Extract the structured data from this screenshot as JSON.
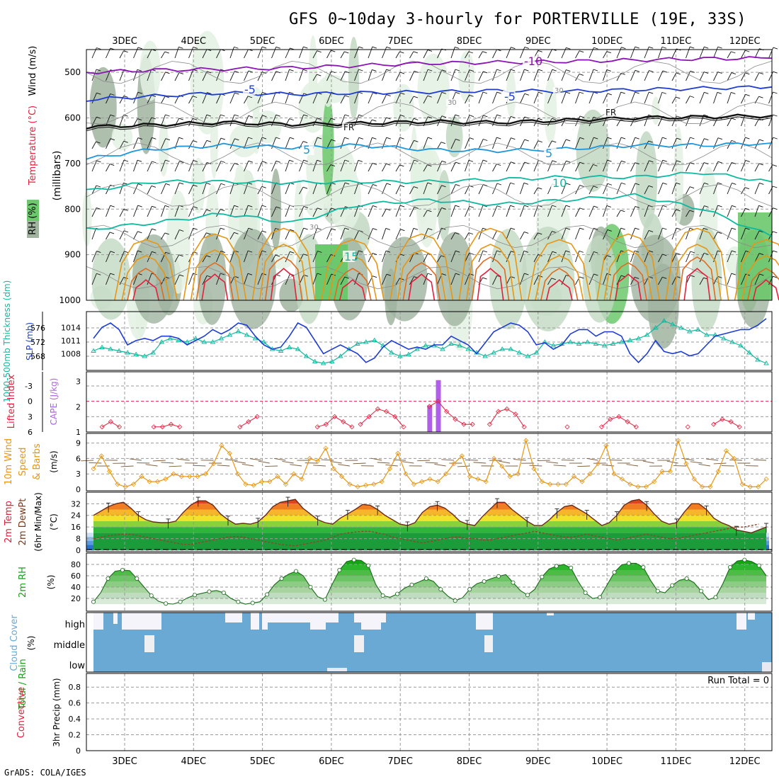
{
  "header": {
    "title": "GFS 0~10day 3-hourly for PORTERVILLE (19E, 33S)",
    "credit": "GrADS: COLA/IGES"
  },
  "colors": {
    "purple": "#8a14b4",
    "blue": "#1e3cd2",
    "lightblue": "#1e96dc",
    "teal": "#10b8a0",
    "orange": "#e69614",
    "red": "#e61e3c",
    "rh_light": "#e3f1e3",
    "rh_mid": "#c2d8c2",
    "rh_dark": "#a0b4a0",
    "rh_green": "#6cc86c",
    "cloud_blue": "#6aa9d4",
    "grid": "#9a9a9a"
  },
  "chart_data": [
    {
      "type": "heatmap",
      "id": "upper",
      "ylabel": "(millibars)",
      "side_labels": [
        "RH (%)",
        "Temperature (°C)",
        "Wind (m/s)"
      ],
      "x_ticks": [
        "3DEC",
        "4DEC",
        "5DEC",
        "6DEC",
        "7DEC",
        "8DEC",
        "9DEC",
        "10DEC",
        "11DEC",
        "12DEC"
      ],
      "ylim": [
        1000,
        450
      ],
      "y_ticks": [
        500,
        600,
        700,
        800,
        900,
        1000
      ],
      "contours": [
        {
          "label": "-10",
          "level": -10,
          "color": "purple",
          "pressure": [
            500,
            495,
            493,
            490,
            485,
            480,
            478,
            476,
            473,
            470,
            469
          ]
        },
        {
          "label": "-5",
          "level": -5,
          "color": "blue",
          "pressure": [
            560,
            552,
            545,
            548,
            545,
            543,
            540,
            542,
            538,
            535,
            532
          ]
        },
        {
          "label": "FR",
          "level": 0,
          "color": "black",
          "pressure": [
            620,
            615,
            610,
            614,
            612,
            608,
            610,
            605,
            600,
            598,
            595
          ]
        },
        {
          "label": "5",
          "level": 5,
          "color": "lightblue",
          "pressure": [
            690,
            668,
            660,
            665,
            660,
            670,
            672,
            668,
            660,
            660,
            655
          ]
        },
        {
          "label": "10",
          "level": 10,
          "color": "teal",
          "pressure": [
            760,
            740,
            740,
            742,
            740,
            740,
            735,
            730,
            730,
            720,
            740
          ]
        },
        {
          "label": "15",
          "level": 15,
          "color": "teal",
          "pressure": [
            845,
            830,
            810,
            830,
            790,
            780,
            790,
            780,
            770,
            800,
            860
          ]
        }
      ],
      "inline_labels": [
        "-10",
        "-5",
        "-5",
        "FR",
        "FR",
        "5",
        "5",
        "10",
        "15",
        "30",
        "30",
        "30"
      ]
    },
    {
      "type": "line",
      "id": "slp",
      "ylabels": [
        "1000-500mb Thickness (dm)",
        "SLP (mb)"
      ],
      "left_ticks": [
        "576",
        "572",
        "568"
      ],
      "right_ticks": [
        "1014",
        "1011",
        "1008"
      ],
      "series": [
        {
          "name": "SLP (mb)",
          "color": "blue",
          "values": [
            1011.5,
            1014,
            1015,
            1013.5,
            1010,
            1011,
            1011.5,
            1011,
            1012,
            1012,
            1011.5,
            1010,
            1011,
            1012,
            1013.5,
            1012.5,
            1013.5,
            1015,
            1014.5,
            1012,
            1010,
            1009,
            1009.5,
            1012,
            1015,
            1014,
            1011,
            1008,
            1009,
            1010,
            1009,
            1008,
            1006,
            1007,
            1009.5,
            1011,
            1010,
            1009,
            1009.5,
            1009,
            1010,
            1010,
            1012,
            1011,
            1010,
            1008,
            1010.5,
            1013,
            1014,
            1015,
            1014.5,
            1013,
            1010,
            1010.5,
            1009,
            1010,
            1012.5,
            1013.5,
            1013.5,
            1012,
            1013,
            1013,
            1012,
            1008,
            1006,
            1008,
            1011,
            1008.5,
            1008,
            1008.5,
            1007.5,
            1008,
            1010,
            1012,
            1012.5,
            1013,
            1013.5,
            1013.5,
            1014.5,
            1016
          ]
        },
        {
          "name": "1000-500mb Thickness (dm)",
          "color": "teal",
          "marker": "triangle",
          "values": [
            569.5,
            570.5,
            570,
            569.5,
            569,
            568.5,
            568,
            569,
            572,
            573,
            572.5,
            572,
            573,
            572,
            572,
            573,
            574,
            575,
            574,
            573,
            572,
            570,
            569.5,
            570.5,
            570,
            568,
            566.5,
            566,
            566.5,
            568,
            570,
            571.5,
            572,
            572.5,
            571,
            569,
            568,
            568.5,
            570,
            571,
            571,
            570,
            571.5,
            571,
            570,
            569,
            568,
            569,
            570,
            570,
            569,
            568,
            569,
            572,
            571,
            571.5,
            572,
            571.5,
            572,
            571.5,
            571,
            571.5,
            572,
            572.5,
            573,
            574,
            576,
            578,
            577,
            576,
            575,
            575.5,
            574,
            574,
            573,
            572,
            571,
            569,
            567,
            566
          ]
        }
      ]
    },
    {
      "type": "bar",
      "id": "li_cape",
      "ylabels": [
        "Lifted Index",
        "CAPE (J/kg)"
      ],
      "left_ticks": [
        "-3",
        "0",
        "3",
        "6"
      ],
      "right_ticks": [
        "3",
        "2",
        "1"
      ],
      "reference_line": 0,
      "cape_bars": [
        {
          "index": 39,
          "value": 2
        },
        {
          "index": 40,
          "value": 3
        }
      ],
      "lifted_index_segments": [
        {
          "start": 1,
          "values": [
            5,
            4,
            5
          ]
        },
        {
          "start": 7,
          "values": [
            5,
            5,
            4.5,
            5
          ]
        },
        {
          "start": 17,
          "values": [
            5,
            4,
            3
          ]
        },
        {
          "start": 26,
          "values": [
            5,
            4.5,
            3,
            4,
            5
          ]
        },
        {
          "start": 31,
          "values": [
            4.5,
            3,
            1.5,
            2,
            3,
            5
          ]
        },
        {
          "start": 39,
          "values": [
            1,
            0,
            2,
            3.5,
            4.5,
            4.5
          ]
        },
        {
          "start": 46,
          "values": [
            4.5,
            2,
            1.5,
            2.5,
            5
          ]
        },
        {
          "start": 55,
          "values": [
            5
          ]
        },
        {
          "start": 59,
          "values": [
            5,
            3.5,
            3,
            4,
            5
          ]
        },
        {
          "start": 69,
          "values": [
            5
          ]
        },
        {
          "start": 72,
          "values": [
            4.5,
            3.5,
            4,
            5
          ]
        }
      ]
    },
    {
      "type": "line",
      "id": "wind10m",
      "ylabels": [
        "10m Wind",
        "Speed",
        "& Barbs",
        "(m/s)"
      ],
      "y_ticks": [
        "9",
        "6",
        "3",
        "0"
      ],
      "series": [
        {
          "name": "10m wind speed (m/s)",
          "color": "orange",
          "marker": "diamond",
          "values": [
            4,
            6.5,
            3.5,
            1,
            0.5,
            1,
            2.5,
            1.5,
            1.5,
            2,
            3,
            2.5,
            2.5,
            2.5,
            3,
            5,
            8.5,
            7,
            3,
            1,
            0.8,
            1.5,
            1.5,
            2.5,
            1,
            3,
            2,
            6,
            5.5,
            8,
            4,
            2.5,
            1,
            0.5,
            0.8,
            1,
            1.5,
            4,
            7,
            3,
            1,
            1.5,
            2,
            1.5,
            3,
            5,
            6.5,
            2.5,
            2,
            1.5,
            6,
            4.5,
            2.5,
            3,
            9.5,
            4,
            1.5,
            1,
            1,
            1,
            2.5,
            1.5,
            3,
            5,
            8.5,
            3,
            2,
            1,
            0.5,
            0.5,
            1.5,
            3.5,
            3.5,
            9.5,
            5,
            2,
            0.5,
            0.5,
            3.5,
            7.5,
            6,
            1,
            0.5,
            0.5,
            2
          ]
        }
      ]
    },
    {
      "type": "area",
      "id": "temp2m",
      "ylabels": [
        "2m Temp",
        "2m DewPt",
        "(6hr Min/Max)",
        "(°C)"
      ],
      "y_ticks": [
        "32",
        "24",
        "16",
        "8",
        "0"
      ],
      "series": [
        {
          "name": "2m Temp (°C)",
          "color": "brown",
          "values": [
            24,
            27,
            30,
            32,
            33,
            29,
            24,
            21,
            19.5,
            19,
            19,
            20,
            26,
            31,
            34,
            34,
            31,
            25,
            21,
            18,
            18.5,
            18,
            19.5,
            24,
            30,
            33,
            34,
            35,
            29,
            25,
            21,
            19,
            18,
            22,
            25,
            28,
            31.5,
            31,
            28,
            24,
            21,
            18,
            17,
            19,
            26,
            30,
            31,
            29,
            25,
            20,
            18,
            17,
            23,
            28,
            33,
            33,
            28,
            24,
            20,
            17,
            17,
            21,
            26,
            30,
            31,
            28,
            25,
            21,
            17,
            19,
            24,
            31,
            34,
            35,
            31,
            25,
            20,
            18,
            19,
            26,
            32,
            32,
            28,
            22,
            19,
            17,
            14,
            13,
            12,
            14,
            16
          ]
        },
        {
          "name": "2m DewPt (°C)",
          "color": "brown",
          "dashed": true,
          "values": [
            8,
            9,
            10,
            10.5,
            11,
            11,
            10,
            9,
            8,
            7,
            6,
            5,
            4,
            4,
            5,
            6,
            7,
            8,
            9,
            9.5,
            9,
            8,
            7,
            6,
            5,
            4,
            3.5,
            3,
            4,
            5,
            6,
            7,
            9,
            11,
            12,
            12.5,
            13,
            13,
            12,
            11,
            9,
            8,
            7,
            6,
            5,
            6,
            7,
            8,
            9,
            9,
            8,
            8,
            7,
            7,
            8,
            9,
            10,
            11,
            12,
            13,
            12,
            11,
            10,
            9,
            9,
            10,
            11,
            10,
            9,
            8,
            7,
            8,
            9,
            10,
            11,
            10,
            9,
            8,
            8,
            9,
            10,
            11,
            12,
            13,
            14,
            15,
            16,
            16,
            17,
            18
          ]
        }
      ]
    },
    {
      "type": "area",
      "id": "rh2m",
      "ylabels": [
        "2m RH",
        "(%)"
      ],
      "y_ticks": [
        "80",
        "60",
        "40",
        "20"
      ],
      "series": [
        {
          "name": "2m RH (%)",
          "color": "green",
          "marker": "circle",
          "values": [
            14,
            30,
            55,
            68,
            70,
            69,
            55,
            40,
            25,
            15,
            11,
            10,
            14,
            21,
            26,
            29,
            32,
            34,
            30,
            20,
            14,
            10,
            12,
            14,
            27,
            44,
            55,
            63,
            68,
            60,
            40,
            23,
            18,
            45,
            70,
            85,
            88,
            87,
            78,
            45,
            25,
            22,
            28,
            38,
            44,
            49,
            55,
            50,
            36,
            24,
            16,
            21,
            36,
            46,
            50,
            55,
            59,
            62,
            48,
            34,
            26,
            36,
            58,
            72,
            77,
            80,
            74,
            50,
            30,
            20,
            22,
            44,
            66,
            79,
            82,
            82,
            75,
            52,
            33,
            30,
            43,
            52,
            55,
            48,
            33,
            18,
            22,
            46,
            75,
            86,
            88,
            85,
            78,
            60
          ]
        }
      ]
    },
    {
      "type": "heatmap",
      "id": "cloud",
      "ylabels": [
        "Cloud Cover",
        "(%)"
      ],
      "rows": [
        "high",
        "middle",
        "low"
      ]
    },
    {
      "type": "bar",
      "id": "precip",
      "ylabels": [
        "Total / Rain",
        "Convective",
        "3hr Precip (mm)"
      ],
      "y_ticks": [
        "0.8",
        "0.6",
        "0.4",
        "0.2",
        "0"
      ],
      "ylim": [
        0,
        0.9
      ],
      "values": [],
      "run_total": "Run Total = 0"
    }
  ]
}
